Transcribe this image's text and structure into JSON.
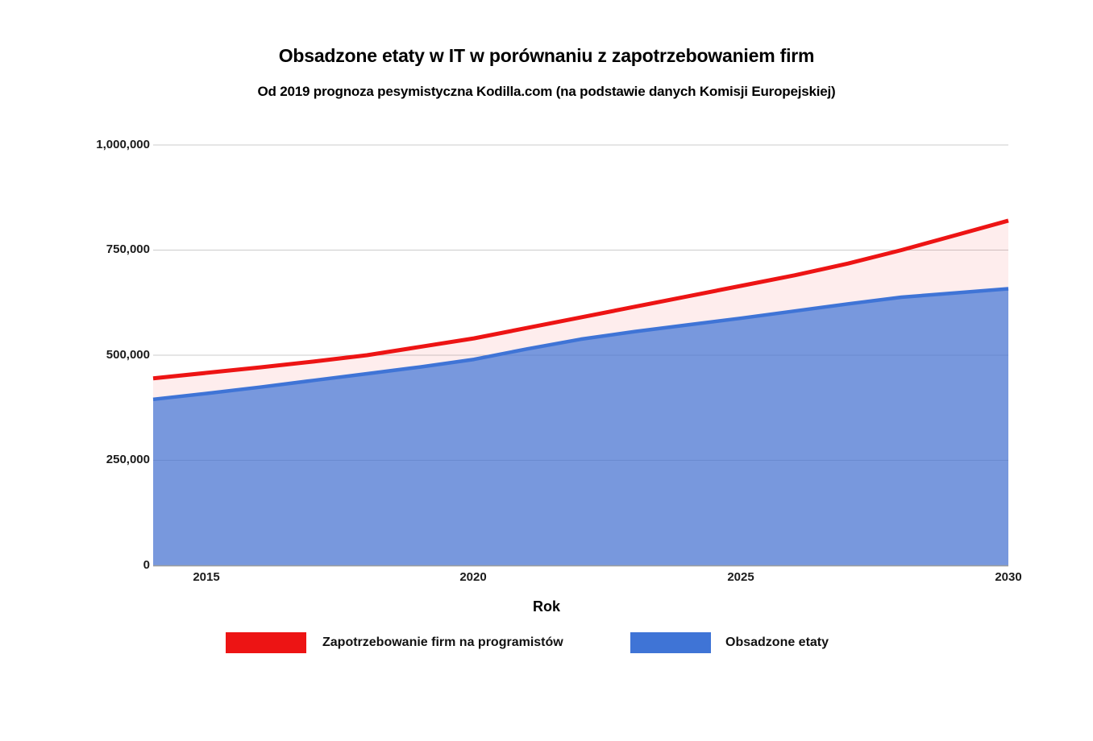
{
  "chart_data": {
    "type": "area",
    "title": "Obsadzone etaty w IT w porównaniu z zapotrzebowaniem firm",
    "subtitle": "Od 2019 prognoza pesymistyczna Kodilla.com (na podstawie danych Komisji Europejskiej)",
    "xlabel": "Rok",
    "ylabel": "",
    "x": [
      2014,
      2015,
      2016,
      2017,
      2018,
      2019,
      2020,
      2021,
      2022,
      2023,
      2024,
      2025,
      2026,
      2027,
      2028,
      2029,
      2030
    ],
    "series": [
      {
        "name": "Zapotrzebowanie firm na programistów",
        "color": "#ed1414",
        "fill": "rgba(237,20,20,0.08)",
        "values": [
          445000,
          458000,
          471000,
          485000,
          500000,
          520000,
          540000,
          565000,
          590000,
          615000,
          640000,
          665000,
          690000,
          718000,
          750000,
          785000,
          820000
        ]
      },
      {
        "name": "Obsadzone etaty",
        "color": "#3f74d6",
        "fill": "rgba(63,116,214,0.70)",
        "values": [
          395000,
          409000,
          424000,
          440000,
          456000,
          472000,
          490000,
          515000,
          538000,
          556000,
          572000,
          588000,
          605000,
          622000,
          638000,
          648000,
          658000
        ]
      }
    ],
    "ylim": [
      0,
      1000000
    ],
    "yticks": [
      1000000,
      750000,
      500000,
      250000,
      0
    ],
    "ytick_labels": [
      "1,000,000",
      "750,000",
      "500,000",
      "250,000",
      "0"
    ],
    "xticks": [
      2015,
      2020,
      2025,
      2030
    ],
    "xtick_labels": [
      "2015",
      "2020",
      "2025",
      "2030"
    ],
    "grid": true,
    "gridline_color": "#cccccc",
    "baseline_color": "#9e9e9e",
    "legend_position": "bottom"
  }
}
